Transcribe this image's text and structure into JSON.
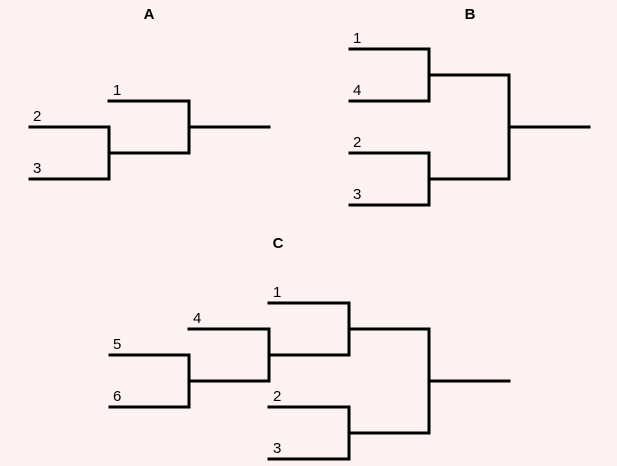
{
  "background": "#fdf2f2",
  "line_color": "#000000",
  "brackets": [
    {
      "id": "a",
      "title": "A",
      "seeds": [
        "1",
        "2",
        "3"
      ]
    },
    {
      "id": "b",
      "title": "B",
      "seeds": [
        "1",
        "4",
        "2",
        "3"
      ]
    },
    {
      "id": "c",
      "title": "C",
      "seeds": [
        "1",
        "4",
        "5",
        "6",
        "2",
        "3"
      ]
    }
  ]
}
